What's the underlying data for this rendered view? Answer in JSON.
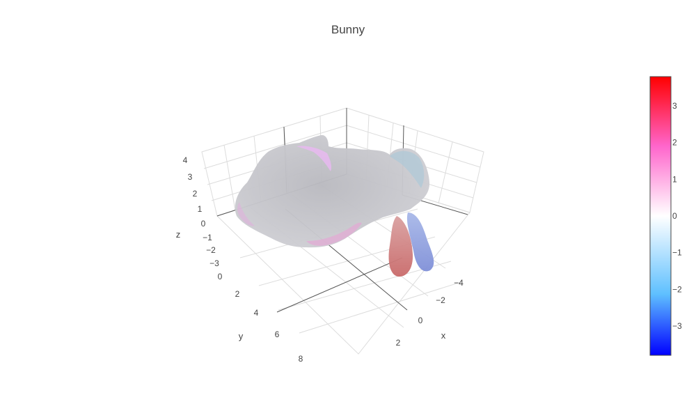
{
  "chart_data": {
    "type": "surface3d",
    "title": "Bunny",
    "scene": {
      "x": {
        "title": "x",
        "ticks": [
          "−4",
          "−2",
          "0",
          "2"
        ]
      },
      "y": {
        "title": "y",
        "ticks": [
          "0",
          "2",
          "4",
          "6",
          "8"
        ]
      },
      "z": {
        "title": "z",
        "ticks": [
          "4",
          "3",
          "2",
          "1",
          "0",
          "−1",
          "−2",
          "−3"
        ]
      },
      "grid": true
    },
    "colorscale": [
      "#0000ff",
      "#5fc0ff",
      "#ffffff",
      "#ff66cc",
      "#ff0000"
    ],
    "colorbar": {
      "ticks": [
        "3",
        "2",
        "1",
        "0",
        "−1",
        "−2",
        "−3"
      ],
      "range": [
        -3.8,
        3.8
      ]
    },
    "surface_color": "#c8c8cc"
  }
}
